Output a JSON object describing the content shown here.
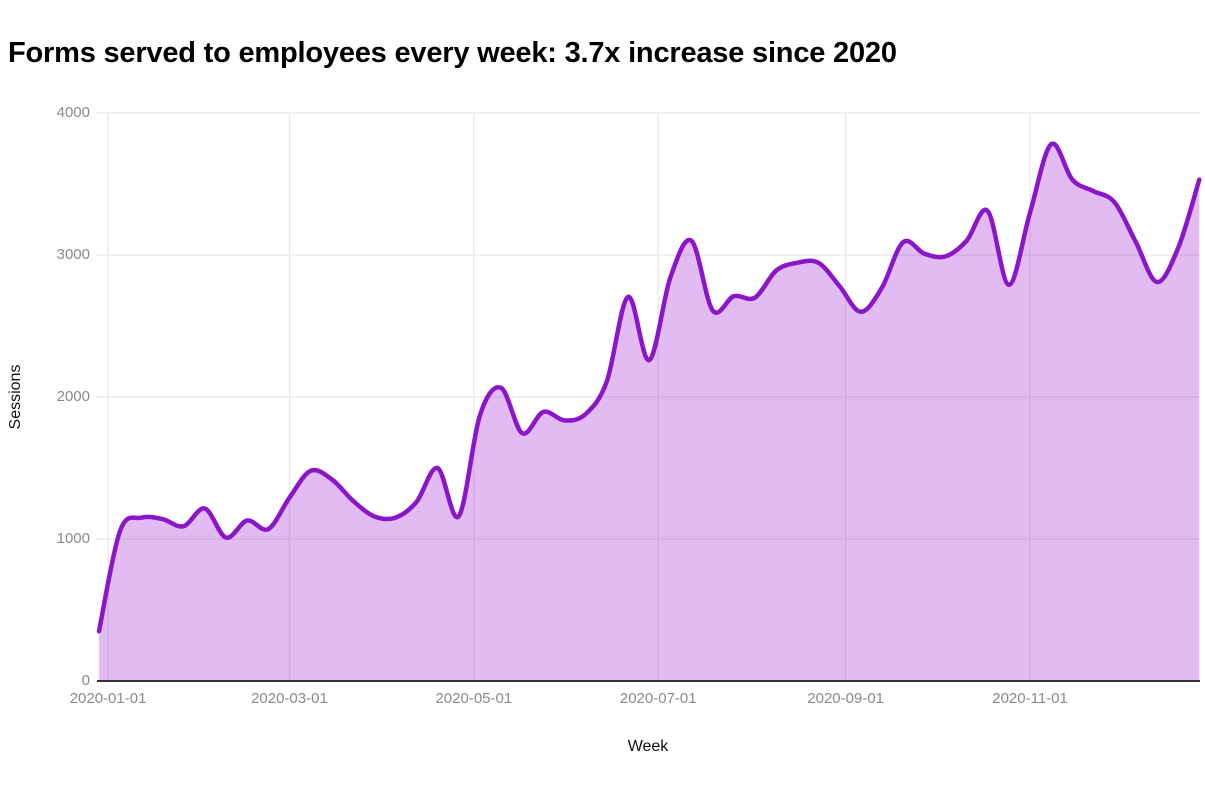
{
  "header": {
    "title": "Forms served to employees every week: 3.7x increase since 2020"
  },
  "chart_data": {
    "type": "area",
    "title": "Forms served to employees every week: 3.7x increase since 2020",
    "xlabel": "Week",
    "ylabel": "Sessions",
    "line_shape": "spline",
    "grid": "on",
    "legend": "none",
    "ylim": [
      0,
      4000
    ],
    "y_ticks": [
      0,
      1000,
      2000,
      3000,
      4000
    ],
    "x_ticks": [
      "2020-01-01",
      "2020-03-01",
      "2020-05-01",
      "2020-07-01",
      "2020-09-01",
      "2020-11-01"
    ],
    "series": [
      {
        "name": "Sessions",
        "x": [
          "2019-12-29",
          "2020-01-05",
          "2020-01-12",
          "2020-01-19",
          "2020-01-26",
          "2020-02-02",
          "2020-02-09",
          "2020-02-16",
          "2020-02-23",
          "2020-03-01",
          "2020-03-08",
          "2020-03-15",
          "2020-03-22",
          "2020-03-29",
          "2020-04-05",
          "2020-04-12",
          "2020-04-19",
          "2020-04-26",
          "2020-05-03",
          "2020-05-10",
          "2020-05-17",
          "2020-05-24",
          "2020-05-31",
          "2020-06-07",
          "2020-06-14",
          "2020-06-21",
          "2020-06-28",
          "2020-07-05",
          "2020-07-12",
          "2020-07-19",
          "2020-07-26",
          "2020-08-02",
          "2020-08-09",
          "2020-08-16",
          "2020-08-23",
          "2020-08-30",
          "2020-09-06",
          "2020-09-13",
          "2020-09-20",
          "2020-09-27",
          "2020-10-04",
          "2020-10-11",
          "2020-10-18",
          "2020-10-25",
          "2020-11-01",
          "2020-11-08",
          "2020-11-15",
          "2020-11-22",
          "2020-11-29",
          "2020-12-06",
          "2020-12-13",
          "2020-12-20",
          "2020-12-27"
        ],
        "values": [
          350,
          1060,
          1150,
          1140,
          1090,
          1215,
          1010,
          1130,
          1070,
          1290,
          1480,
          1420,
          1270,
          1160,
          1150,
          1260,
          1500,
          1160,
          1870,
          2065,
          1745,
          1895,
          1835,
          1880,
          2110,
          2705,
          2260,
          2840,
          3100,
          2610,
          2710,
          2700,
          2890,
          2945,
          2945,
          2780,
          2600,
          2770,
          3090,
          3010,
          2990,
          3100,
          3310,
          2790,
          3300,
          3780,
          3530,
          3450,
          3370,
          3090,
          2810,
          3050,
          3530
        ]
      }
    ],
    "colors": {
      "line": "#8B16C9",
      "fill": "rgba(148,11,208,0.28)",
      "grid": "#E8E8E8",
      "zeroline": "#333333",
      "tick_label": "#8A8A8A",
      "axis_title": "#111111",
      "title": "#000000"
    }
  }
}
